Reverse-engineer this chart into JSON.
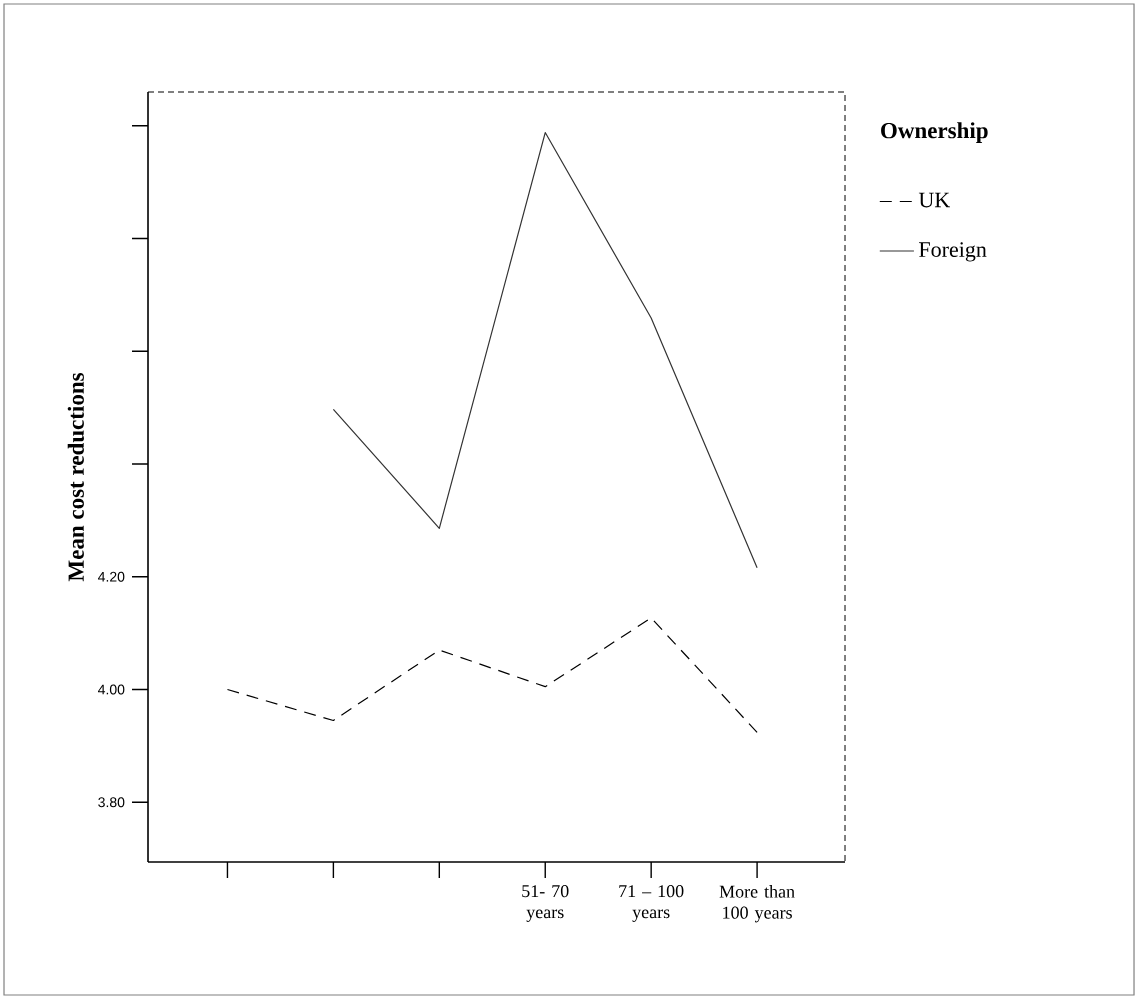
{
  "chart_data": {
    "type": "line",
    "ylabel": "Mean cost reductions",
    "legend_title": "Ownership",
    "legend": "top right",
    "categories": [
      null,
      null,
      null,
      "51- 70 years",
      "71 – 100 years",
      "More than 100 years"
    ],
    "series": [
      {
        "name": "UK",
        "color": "#000000",
        "line_style": "dashed",
        "values": [
          4.0,
          3.945,
          4.07,
          4.005,
          4.127,
          3.924
        ]
      },
      {
        "name": "Foreign",
        "color": "#333333",
        "line_style": "solid",
        "values": [
          null,
          4.497,
          4.286,
          4.988,
          4.659,
          4.216
        ]
      }
    ],
    "ylim": [
      3.694,
      5.06
    ],
    "yticks": [
      {
        "value": 3.8,
        "label": "3.80"
      },
      {
        "value": 4.0,
        "label": "4.00"
      },
      {
        "value": 4.2,
        "label": "4.20"
      },
      {
        "value": 4.4,
        "label": null
      },
      {
        "value": 4.6,
        "label": null
      },
      {
        "value": 4.8,
        "label": null
      },
      {
        "value": 5.0,
        "label": null
      }
    ],
    "grid": false,
    "marker": "none"
  }
}
